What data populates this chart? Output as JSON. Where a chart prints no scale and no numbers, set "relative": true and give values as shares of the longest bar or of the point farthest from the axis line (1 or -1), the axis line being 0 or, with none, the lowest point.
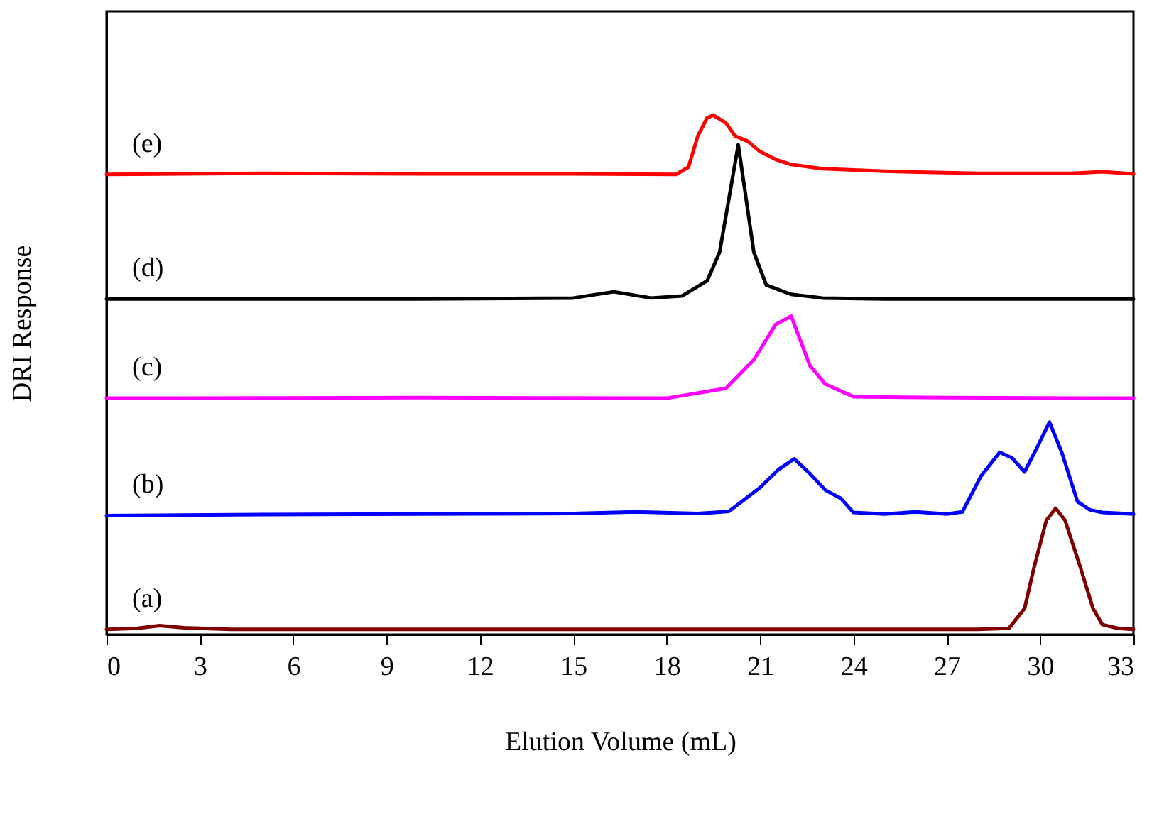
{
  "chart_data": {
    "type": "line",
    "relative": true,
    "xlabel": "Elution Volume (mL)",
    "ylabel": "DRI Response",
    "xlim": [
      0,
      33
    ],
    "xticks": [
      0,
      3,
      6,
      9,
      12,
      15,
      18,
      21,
      24,
      27,
      30,
      33
    ],
    "legend": false,
    "grid": false,
    "marker": "none",
    "line_style": "solid",
    "series": [
      {
        "name": "(a)",
        "color": "#800000",
        "x": [
          0,
          1,
          1.7,
          2.5,
          4,
          10,
          20,
          28,
          29,
          29.5,
          29.8,
          30.2,
          30.5,
          30.8,
          31.3,
          31.7,
          32,
          32.5,
          33
        ],
        "values": [
          0.01,
          0.012,
          0.017,
          0.013,
          0.01,
          0.01,
          0.01,
          0.01,
          0.012,
          0.05,
          0.128,
          0.22,
          0.243,
          0.22,
          0.128,
          0.05,
          0.019,
          0.012,
          0.01
        ]
      },
      {
        "name": "(b)",
        "color": "#0000ff",
        "x": [
          0,
          5,
          10,
          15,
          17,
          19,
          20,
          21,
          21.6,
          22.1,
          22.6,
          23.1,
          23.6,
          24,
          25,
          26,
          27,
          27.5,
          28.1,
          28.7,
          29.1,
          29.5,
          29.9,
          30.3,
          30.7,
          31.2,
          31.6,
          32,
          33
        ],
        "values": [
          0.229,
          0.231,
          0.232,
          0.233,
          0.236,
          0.233,
          0.237,
          0.283,
          0.318,
          0.338,
          0.31,
          0.278,
          0.262,
          0.235,
          0.232,
          0.236,
          0.232,
          0.236,
          0.305,
          0.351,
          0.34,
          0.313,
          0.36,
          0.409,
          0.35,
          0.256,
          0.24,
          0.235,
          0.232
        ]
      },
      {
        "name": "(c)",
        "color": "#ff00ff",
        "x": [
          0,
          10,
          18,
          19.9,
          20.8,
          21.5,
          22,
          22.6,
          23.1,
          24,
          27,
          33
        ],
        "values": [
          0.455,
          0.456,
          0.455,
          0.474,
          0.529,
          0.597,
          0.613,
          0.518,
          0.482,
          0.458,
          0.456,
          0.455
        ]
      },
      {
        "name": "(d)",
        "color": "#000000",
        "x": [
          0,
          10,
          15,
          16.3,
          17.5,
          18.5,
          19.3,
          19.7,
          20.3,
          20.8,
          21.2,
          22,
          23,
          25,
          33
        ],
        "values": [
          0.646,
          0.646,
          0.648,
          0.66,
          0.648,
          0.652,
          0.681,
          0.736,
          0.943,
          0.736,
          0.673,
          0.655,
          0.648,
          0.646,
          0.646
        ]
      },
      {
        "name": "(e)",
        "color": "#ff0000",
        "x": [
          0,
          5,
          10,
          15,
          18.3,
          18.7,
          19,
          19.3,
          19.5,
          19.9,
          20.2,
          20.6,
          21,
          21.5,
          22,
          23,
          25,
          28,
          31,
          32,
          33
        ],
        "values": [
          0.886,
          0.888,
          0.887,
          0.887,
          0.886,
          0.9,
          0.96,
          0.995,
          1,
          0.985,
          0.96,
          0.95,
          0.93,
          0.915,
          0.905,
          0.897,
          0.892,
          0.888,
          0.888,
          0.891,
          0.887
        ]
      }
    ]
  }
}
